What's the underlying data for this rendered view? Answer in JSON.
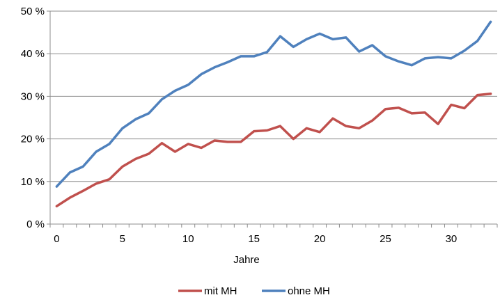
{
  "chart_data": {
    "type": "line",
    "title": "",
    "xlabel": "Jahre",
    "ylabel": "",
    "x": [
      0,
      1,
      2,
      3,
      4,
      5,
      6,
      7,
      8,
      9,
      10,
      11,
      12,
      13,
      14,
      15,
      16,
      17,
      18,
      19,
      20,
      21,
      22,
      23,
      24,
      25,
      26,
      27,
      28,
      29,
      30,
      31,
      32,
      33
    ],
    "xlim": [
      -0.5,
      33.5
    ],
    "xticks": [
      0,
      5,
      10,
      15,
      20,
      25,
      30
    ],
    "ylim": [
      0,
      50
    ],
    "yticks": [
      0,
      10,
      20,
      30,
      40,
      50
    ],
    "ytick_labels": [
      "0 %",
      "10 %",
      "20 %",
      "30 %",
      "40 %",
      "50 %"
    ],
    "grid": "horizontal",
    "legend_position": "bottom",
    "series": [
      {
        "name": "mit MH",
        "color": "#c0504d",
        "values": [
          4.2,
          6.2,
          7.8,
          9.5,
          10.5,
          13.5,
          15.3,
          16.5,
          19.0,
          17.0,
          18.8,
          17.9,
          19.6,
          19.3,
          19.3,
          21.8,
          22.0,
          23.0,
          20.0,
          22.5,
          21.6,
          24.8,
          23.0,
          22.5,
          24.3,
          27.0,
          27.3,
          26.0,
          26.2,
          23.5,
          28.0,
          27.2,
          30.3,
          30.6
        ]
      },
      {
        "name": "ohne MH",
        "color": "#4f81bd",
        "values": [
          8.8,
          12.1,
          13.5,
          17.0,
          18.8,
          22.5,
          24.6,
          26.0,
          29.3,
          31.3,
          32.7,
          35.2,
          36.8,
          38.0,
          39.4,
          39.4,
          40.4,
          44.1,
          41.6,
          43.4,
          44.7,
          43.4,
          43.8,
          40.5,
          42.0,
          39.4,
          38.2,
          37.3,
          38.9,
          39.2,
          38.9,
          40.7,
          43.0,
          47.5
        ]
      }
    ]
  }
}
